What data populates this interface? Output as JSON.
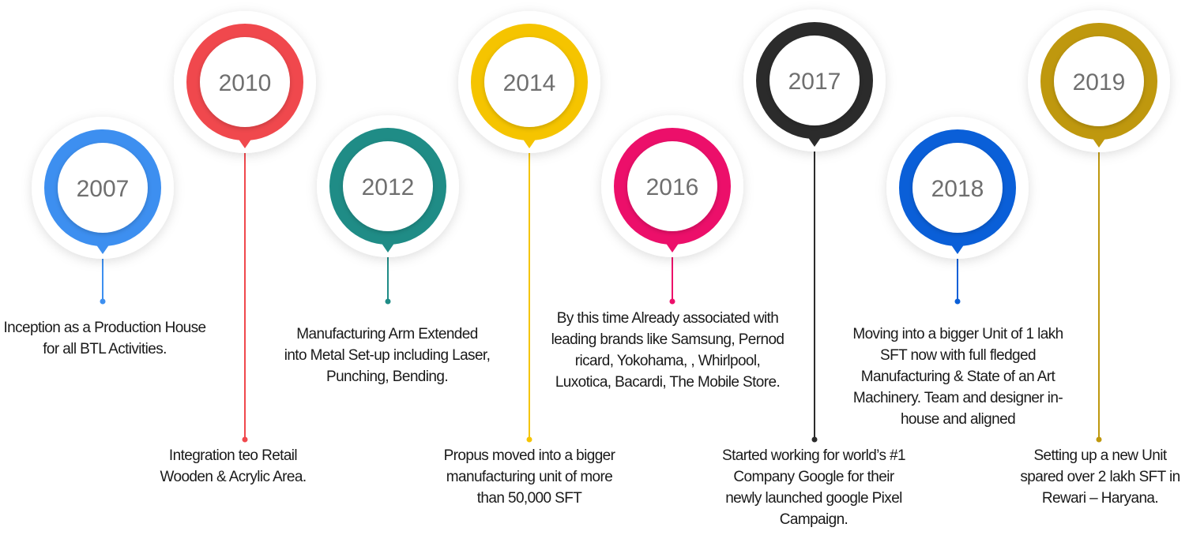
{
  "milestones": [
    {
      "year": "2007",
      "color": "#3d8ff0",
      "description": "Inception as a Production House\nfor all BTL Activities."
    },
    {
      "year": "2010",
      "color": "#f0484d",
      "description": "Integration teo  Retail\nWooden & Acrylic Area."
    },
    {
      "year": "2012",
      "color": "#1f8c86",
      "description": "Manufacturing  Arm Extended\ninto Metal Set-up including Laser,\nPunching, Bending."
    },
    {
      "year": "2014",
      "color": "#f5c400",
      "description": "Propus moved into a bigger\nmanufacturing unit of more\nthan 50,000 SFT"
    },
    {
      "year": "2016",
      "color": "#ec0f6a",
      "description": "By this time Already associated with\nleading brands like  Samsung, Pernod\nricard, Yokohama, , Whirlpool,\nLuxotica, Bacardi, The Mobile Store."
    },
    {
      "year": "2017",
      "color": "#2b2b2b",
      "description": "Started working for world’s #1\nCompany Google for their\nnewly launched google Pixel\nCampaign."
    },
    {
      "year": "2018",
      "color": "#0a5fd8",
      "description": "Moving into a bigger Unit of 1 lakh\nSFT now with full fledged\nManufacturing & State of an Art\nMachinery. Team and designer in-\nhouse and aligned"
    },
    {
      "year": "2019",
      "color": "#bf980e",
      "description": "Setting up a new Unit\nspared over 2 lakh SFT in\nRewari – Haryana."
    }
  ]
}
